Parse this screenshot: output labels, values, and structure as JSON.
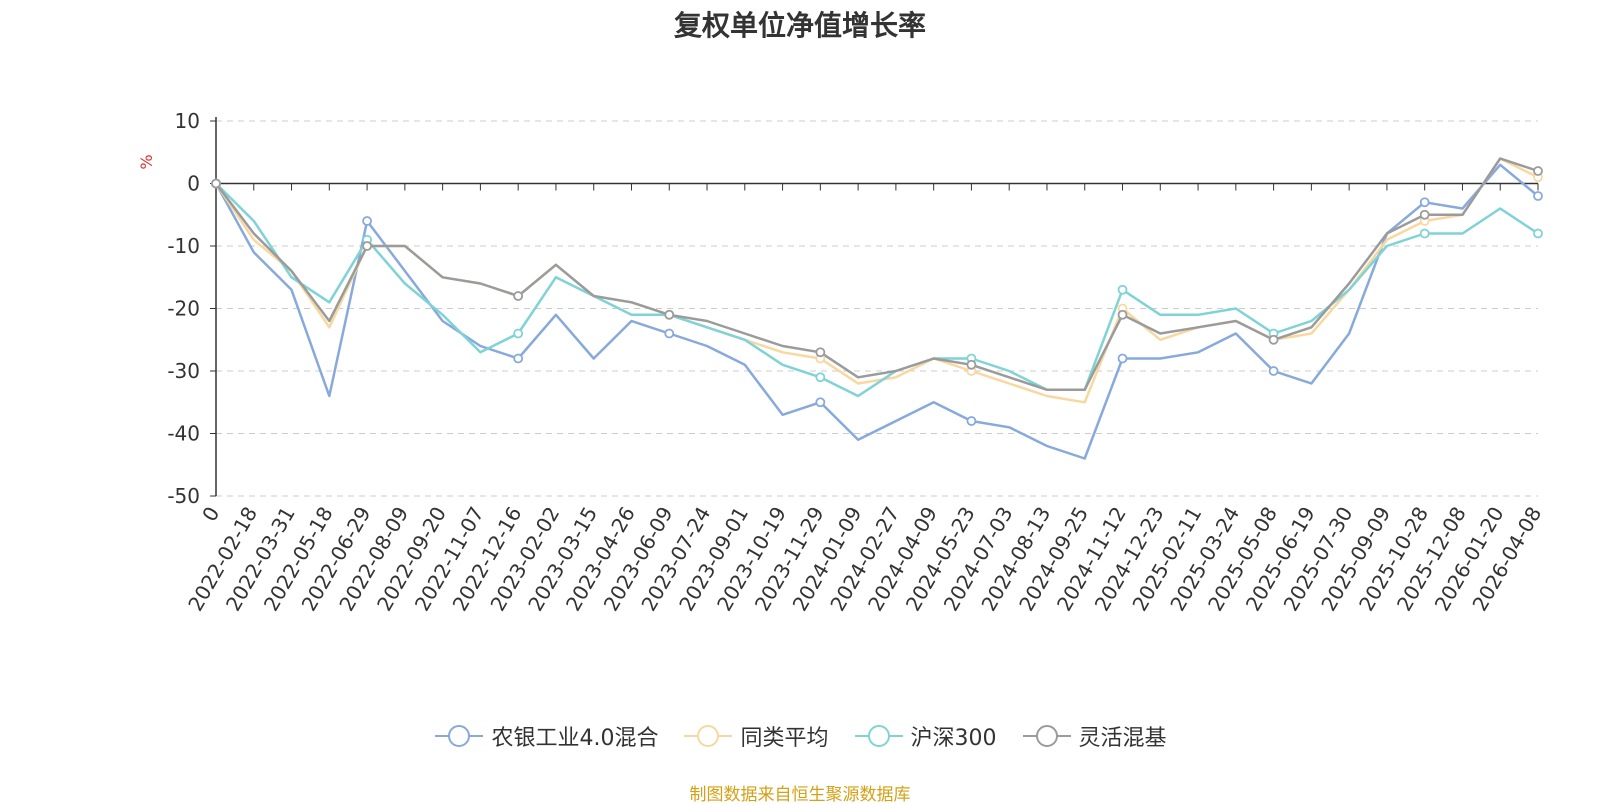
{
  "chart_data": {
    "type": "line",
    "title": "复权单位净值增长率",
    "ylabel": "%",
    "xlabel": "",
    "ylim": [
      -50,
      10
    ],
    "yticks": [
      10,
      0,
      -10,
      -20,
      -30,
      -40,
      -50
    ],
    "x": [
      "0",
      "2022-02-18",
      "2022-03-31",
      "2022-05-18",
      "2022-06-29",
      "2022-08-09",
      "2022-09-20",
      "2022-11-07",
      "2022-12-16",
      "2023-02-02",
      "2023-03-15",
      "2023-04-26",
      "2023-06-09",
      "2023-07-24",
      "2023-09-01",
      "2023-10-19",
      "2023-11-29",
      "2024-01-09",
      "2024-02-27",
      "2024-04-09",
      "2024-05-23",
      "2024-07-03",
      "2024-08-13",
      "2024-09-25",
      "2024-11-12",
      "2024-12-23",
      "2025-02-11",
      "2025-03-24",
      "2025-05-08",
      "2025-06-19",
      "2025-07-30",
      "2025-09-09",
      "2025-10-28",
      "2025-12-08",
      "2026-01-20",
      "2026-04-08"
    ],
    "series": [
      {
        "name": "农银工业4.0混合",
        "color": "#87a9dc",
        "values": [
          0,
          -11,
          -17,
          -34,
          -6,
          -14,
          -22,
          -26,
          -28,
          -21,
          -28,
          -22,
          -24,
          -26,
          -29,
          -37,
          -35,
          -41,
          -38,
          -35,
          -38,
          -39,
          -42,
          -44,
          -28,
          -28,
          -27,
          -24,
          -30,
          -32,
          -24,
          -8,
          -3,
          -4,
          3,
          -2
        ]
      },
      {
        "name": "同类平均",
        "color": "#f8d8a0",
        "values": [
          0,
          -9,
          -14,
          -23,
          -10,
          -10,
          -15,
          -16,
          -18,
          -13,
          -18,
          -19,
          -21,
          -23,
          -25,
          -27,
          -28,
          -32,
          -31,
          -28,
          -30,
          -32,
          -34,
          -35,
          -20,
          -25,
          -23,
          -22,
          -25,
          -24,
          -17,
          -9,
          -6,
          -5,
          4,
          1
        ]
      },
      {
        "name": "沪深300",
        "color": "#7fd3d6",
        "values": [
          0,
          -6,
          -15,
          -19,
          -9,
          -16,
          -21,
          -27,
          -24,
          -15,
          -18,
          -21,
          -21,
          -23,
          -25,
          -29,
          -31,
          -34,
          -30,
          -28,
          -28,
          -30,
          -33,
          -33,
          -17,
          -21,
          -21,
          -20,
          -24,
          -22,
          -17,
          -10,
          -8,
          -8,
          -4,
          -8
        ]
      },
      {
        "name": "灵活混基",
        "color": "#9b9b9b",
        "values": [
          0,
          -8,
          -14,
          -22,
          -10,
          -10,
          -15,
          -16,
          -18,
          -13,
          -18,
          -19,
          -21,
          -22,
          -24,
          -26,
          -27,
          -31,
          -30,
          -28,
          -29,
          -31,
          -33,
          -33,
          -21,
          -24,
          -23,
          -22,
          -25,
          -23,
          -16,
          -8,
          -5,
          -5,
          4,
          2
        ]
      }
    ]
  },
  "source_text": "制图数据来自恒生聚源数据库"
}
